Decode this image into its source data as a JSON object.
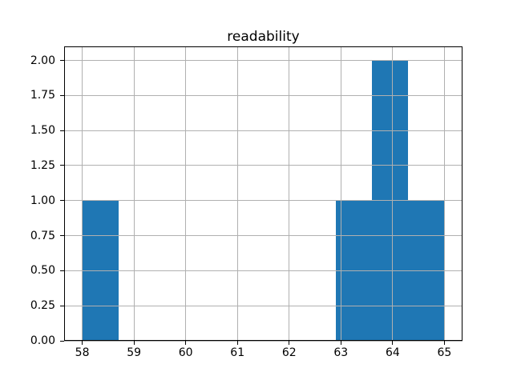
{
  "chart_data": {
    "type": "bar",
    "chart_kind": "histogram",
    "title": "readability",
    "xlabel": "",
    "ylabel": "",
    "bin_edges": [
      58.0,
      58.7,
      59.4,
      60.1,
      60.8,
      61.5,
      62.2,
      62.9,
      63.6,
      64.3,
      65.0
    ],
    "counts": [
      1,
      0,
      0,
      0,
      0,
      0,
      0,
      1,
      2,
      1
    ],
    "xlim": [
      57.65,
      65.35
    ],
    "ylim": [
      0,
      2.1
    ],
    "x_ticks": [
      58,
      59,
      60,
      61,
      62,
      63,
      64,
      65
    ],
    "x_tick_labels": [
      "58",
      "59",
      "60",
      "61",
      "62",
      "63",
      "64",
      "65"
    ],
    "y_ticks": [
      0.0,
      0.25,
      0.5,
      0.75,
      1.0,
      1.25,
      1.5,
      1.75,
      2.0
    ],
    "y_tick_labels": [
      "0.00",
      "0.25",
      "0.50",
      "0.75",
      "1.00",
      "1.25",
      "1.50",
      "1.75",
      "2.00"
    ],
    "grid": true,
    "grid_above_bars": true,
    "legend_position": "none",
    "bar_color": "#1f77b4",
    "grid_color": "#b0b0b0",
    "spine_color": "#000000",
    "text_color": "#000000",
    "background_color": "#ffffff"
  }
}
